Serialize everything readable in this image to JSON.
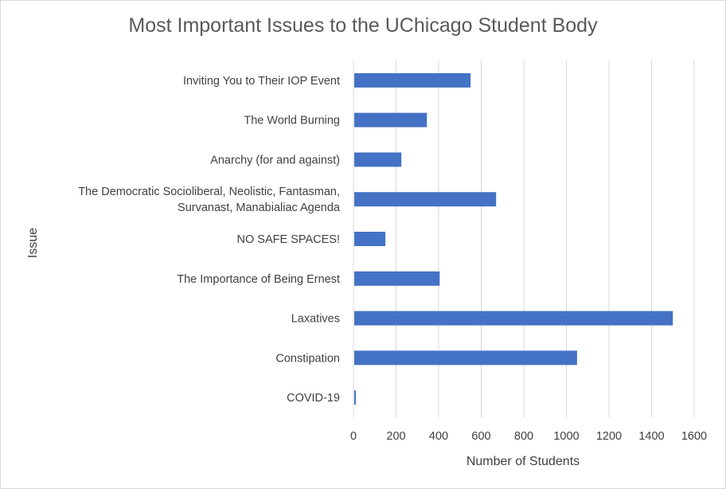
{
  "chart_data": {
    "type": "bar",
    "orientation": "horizontal",
    "title": "Most Important Issues to the UChicago Student Body",
    "xlabel": "Number of Students",
    "ylabel": "Issue",
    "xlim": [
      0,
      1600
    ],
    "xticks": [
      0,
      200,
      400,
      600,
      800,
      1000,
      1200,
      1400,
      1600
    ],
    "grid": "vertical",
    "legend": "none",
    "bar_color": "#4472c4",
    "categories": [
      [
        "Inviting You to Their IOP Event"
      ],
      [
        "The World Burning"
      ],
      [
        "Anarchy (for and against)"
      ],
      [
        "The Democratic Socioliberal, Neolistic, Fantasman,",
        "Survanast, Manabialiac Agenda"
      ],
      [
        "NO SAFE SPACES!"
      ],
      [
        "The Importance of Being Ernest"
      ],
      [
        "Laxatives"
      ],
      [
        "Constipation"
      ],
      [
        "COVID-19"
      ]
    ],
    "values": [
      550,
      345,
      225,
      670,
      150,
      405,
      1500,
      1050,
      10
    ]
  }
}
